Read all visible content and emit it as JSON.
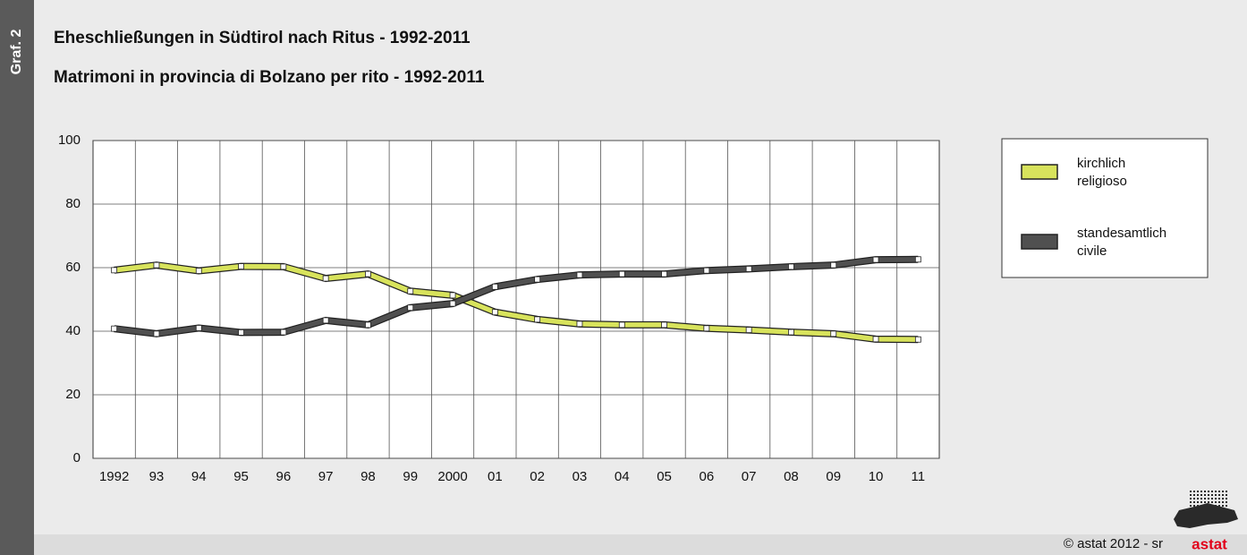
{
  "side_label": "Graf. 2",
  "footer": "© astat 2012 - sr",
  "logo": "astat",
  "chart_data": {
    "type": "line",
    "title": "Eheschließungen in Südtirol nach Ritus - 1992-2011",
    "subtitle": "Matrimoni in provincia di Bolzano per rito - 1992-2011",
    "categories": [
      "1992",
      "93",
      "94",
      "95",
      "96",
      "97",
      "98",
      "99",
      "2000",
      "01",
      "02",
      "03",
      "04",
      "05",
      "06",
      "07",
      "08",
      "09",
      "10",
      "11"
    ],
    "series": [
      {
        "name": "kirchlich\nreligioso",
        "color": "#d8e35c",
        "values": [
          59.2,
          60.8,
          59.0,
          60.4,
          60.3,
          56.6,
          58.0,
          52.6,
          51.3,
          46.0,
          43.7,
          42.3,
          42.0,
          42.0,
          40.9,
          40.4,
          39.7,
          39.2,
          37.5,
          37.4
        ]
      },
      {
        "name": "standesamtlich\ncivile",
        "color": "#505050",
        "values": [
          40.8,
          39.2,
          41.0,
          39.6,
          39.7,
          43.4,
          42.0,
          47.4,
          48.7,
          54.0,
          56.3,
          57.7,
          58.0,
          58.0,
          59.1,
          59.6,
          60.3,
          60.8,
          62.5,
          62.6
        ]
      }
    ],
    "ylim": [
      0,
      100
    ],
    "yticks": [
      0,
      20,
      40,
      60,
      80,
      100
    ],
    "grid": true
  }
}
